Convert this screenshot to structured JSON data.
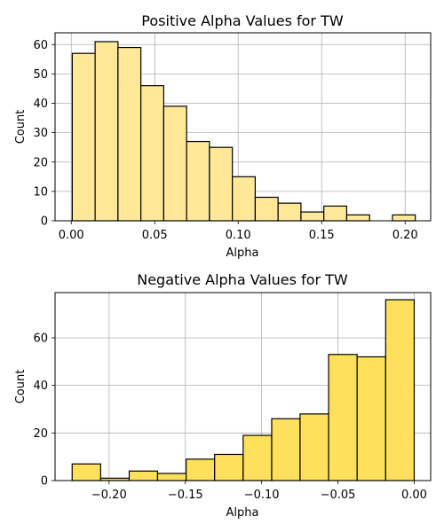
{
  "chart_data": [
    {
      "type": "bar",
      "title": "Positive Alpha Values for TW",
      "xlabel": "Alpha",
      "ylabel": "Count",
      "xlim": [
        -0.0097,
        0.2153
      ],
      "ylim": [
        0,
        64
      ],
      "grid": true,
      "bar_color": "#FFE999",
      "edge_color": "#000000",
      "bins": [
        {
          "x0": 0.0006,
          "x1": 0.0143,
          "count": 57
        },
        {
          "x0": 0.0143,
          "x1": 0.028,
          "count": 61
        },
        {
          "x0": 0.028,
          "x1": 0.0417,
          "count": 59
        },
        {
          "x0": 0.0417,
          "x1": 0.0554,
          "count": 46
        },
        {
          "x0": 0.0554,
          "x1": 0.0691,
          "count": 39
        },
        {
          "x0": 0.0691,
          "x1": 0.0828,
          "count": 27
        },
        {
          "x0": 0.0828,
          "x1": 0.0965,
          "count": 25
        },
        {
          "x0": 0.0965,
          "x1": 0.1102,
          "count": 15
        },
        {
          "x0": 0.1102,
          "x1": 0.1239,
          "count": 8
        },
        {
          "x0": 0.1239,
          "x1": 0.1376,
          "count": 6
        },
        {
          "x0": 0.1376,
          "x1": 0.1513,
          "count": 3
        },
        {
          "x0": 0.1513,
          "x1": 0.165,
          "count": 5
        },
        {
          "x0": 0.165,
          "x1": 0.1787,
          "count": 2
        },
        {
          "x0": 0.1787,
          "x1": 0.1924,
          "count": 0
        },
        {
          "x0": 0.1924,
          "x1": 0.2061,
          "count": 2
        }
      ],
      "xticks": [
        "0.00",
        "0.05",
        "0.10",
        "0.15",
        "0.20"
      ],
      "yticks": [
        "0",
        "10",
        "20",
        "30",
        "40",
        "50",
        "60"
      ]
    },
    {
      "type": "bar",
      "title": "Negative Alpha Values for TW",
      "xlabel": "Alpha",
      "ylabel": "Count",
      "xlim": [
        -0.2354,
        0.0108
      ],
      "ylim": [
        0,
        79
      ],
      "grid": true,
      "bar_color": "#FFE05A",
      "edge_color": "#000000",
      "bins": [
        {
          "x0": -0.2242,
          "x1": -0.2055,
          "count": 7
        },
        {
          "x0": -0.2055,
          "x1": -0.1868,
          "count": 1
        },
        {
          "x0": -0.1868,
          "x1": -0.1682,
          "count": 4
        },
        {
          "x0": -0.1682,
          "x1": -0.1495,
          "count": 3
        },
        {
          "x0": -0.1495,
          "x1": -0.1308,
          "count": 9
        },
        {
          "x0": -0.1308,
          "x1": -0.1121,
          "count": 11
        },
        {
          "x0": -0.1121,
          "x1": -0.0934,
          "count": 19
        },
        {
          "x0": -0.0934,
          "x1": -0.0748,
          "count": 26
        },
        {
          "x0": -0.0748,
          "x1": -0.0561,
          "count": 28
        },
        {
          "x0": -0.0561,
          "x1": -0.0374,
          "count": 53
        },
        {
          "x0": -0.0374,
          "x1": -0.0187,
          "count": 52
        },
        {
          "x0": -0.0187,
          "x1": 0.0,
          "count": 76
        }
      ],
      "xticks": [
        "−0.20",
        "−0.15",
        "−0.10",
        "−0.05",
        "0.00"
      ],
      "yticks": [
        "0",
        "20",
        "40",
        "60"
      ]
    }
  ]
}
